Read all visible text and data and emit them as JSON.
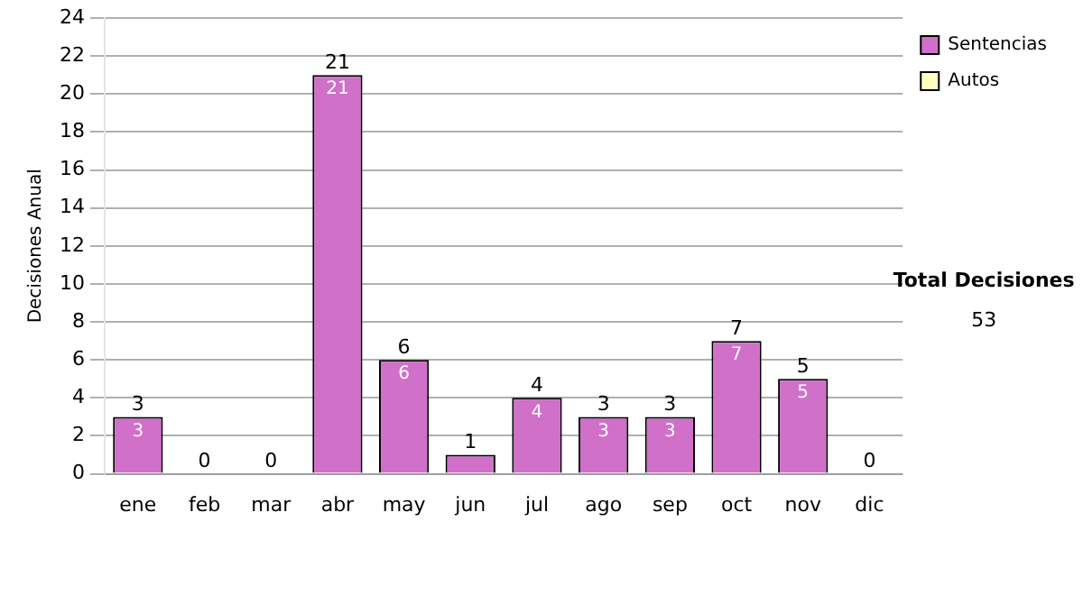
{
  "chart_data": {
    "type": "bar",
    "stacked": true,
    "ylabel": "Decisiones Anual",
    "categories": [
      "ene",
      "feb",
      "mar",
      "abr",
      "may",
      "jun",
      "jul",
      "ago",
      "sep",
      "oct",
      "nov",
      "dic"
    ],
    "series": [
      {
        "name": "Sentencias",
        "color": "#d070c8",
        "values": [
          3,
          0,
          0,
          21,
          6,
          1,
          4,
          3,
          3,
          7,
          5,
          0
        ],
        "value_labels": [
          "3",
          null,
          null,
          "21",
          "6",
          null,
          "4",
          "3",
          "3",
          "7",
          "5",
          null
        ]
      },
      {
        "name": "Autos",
        "color": "#ffffc0",
        "values": [
          0,
          0,
          0,
          0,
          0,
          0,
          0,
          0,
          0,
          0,
          0,
          0
        ]
      }
    ],
    "totals": [
      "3",
      "0",
      "0",
      "21",
      "6",
      "1",
      "4",
      "3",
      "3",
      "7",
      "5",
      "0"
    ],
    "ylim": [
      0,
      24
    ],
    "yticks": [
      0,
      2,
      4,
      6,
      8,
      10,
      12,
      14,
      16,
      18,
      20,
      22,
      24
    ],
    "grid": "y",
    "legend": "right",
    "annotations": [
      "Total Decisiones",
      "53"
    ]
  }
}
